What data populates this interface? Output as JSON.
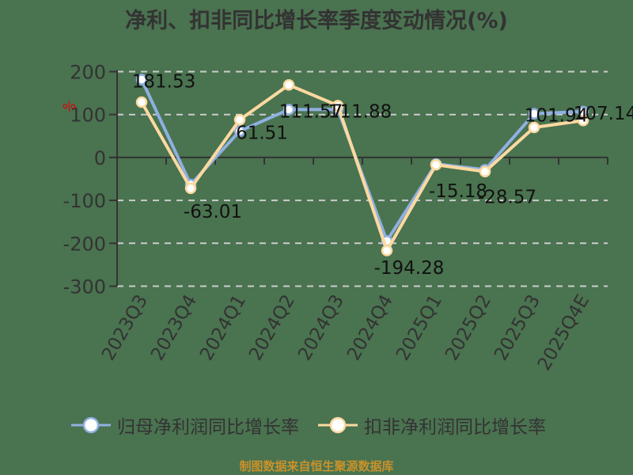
{
  "title": "净利、扣非同比增长率季度变动情况(%)",
  "y_unit_label": "%",
  "source": "制图数据来自恒生聚源数据库",
  "legend": [
    {
      "label": "归母净利润同比增长率",
      "color": "#8fb0e0"
    },
    {
      "label": "扣非净利润同比增长率",
      "color": "#fcd9a0"
    }
  ],
  "chart_data": {
    "type": "line",
    "title": "净利、扣非同比增长率季度变动情况(%)",
    "xlabel": "",
    "ylabel": "%",
    "ylim": [
      -300,
      200
    ],
    "yticks": [
      200,
      100,
      0,
      -100,
      -200,
      -300
    ],
    "grid": "horizontal dashed",
    "legend_position": "bottom",
    "categories": [
      "2023Q3",
      "2023Q4",
      "2024Q1",
      "2024Q2",
      "2024Q3",
      "2024Q4",
      "2025Q1",
      "2025Q2",
      "2025Q3",
      "2025Q4E"
    ],
    "series": [
      {
        "name": "归母净利润同比增长率",
        "color": "#8fb0e0",
        "values": [
          181.53,
          -63.01,
          61.51,
          111.57,
          111.88,
          -194.28,
          -15.18,
          -28.57,
          101.94,
          107.14
        ],
        "data_labels": [
          "181.53",
          "-63.01",
          "61.51",
          "111.57",
          "111.88",
          "-194.28",
          "-15.18",
          "-28.57",
          "101.94",
          "107.14"
        ]
      },
      {
        "name": "扣非净利润同比增长率",
        "color": "#fcd9a0",
        "values": [
          129,
          -72,
          88,
          169,
          121,
          -217,
          -17,
          -33,
          70,
          86
        ]
      }
    ]
  }
}
